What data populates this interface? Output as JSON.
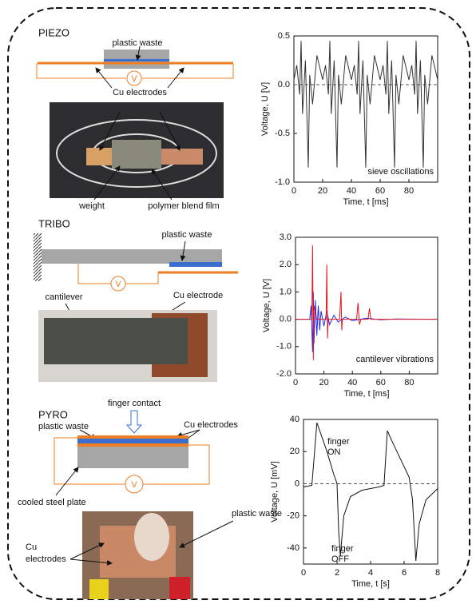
{
  "piezo": {
    "title": "PIEZO",
    "plastic_waste": "plastic waste",
    "cu_electrodes": "Cu electrodes",
    "meter": "V",
    "weight": "weight",
    "film": "polymer blend film"
  },
  "tribo": {
    "title": "TRIBO",
    "plastic_waste": "plastic waste",
    "cantilever": "cantilever",
    "cu_electrode": "Cu electrode",
    "meter": "V"
  },
  "pyro": {
    "title": "PYRO",
    "finger_contact": "finger contact",
    "plastic_waste": "plastic waste",
    "cu_electrodes": "Cu electrodes",
    "meter": "V",
    "steel_plate": "cooled steel plate",
    "photo_plastic_waste": "plastic waste",
    "photo_cu": "Cu",
    "photo_electrodes": "electrodes"
  },
  "chart_data": [
    {
      "type": "line",
      "xlabel": "Time, t [ms]",
      "ylabel": "Voltage, U [V]",
      "annotations": [
        "sieve oscillations"
      ],
      "xlim": [
        0,
        100
      ],
      "xticks": [
        0,
        20,
        40,
        60,
        80
      ],
      "ylim": [
        -1,
        0.5
      ],
      "yticks": [
        {
          "value": -1,
          "label": "-1.0"
        },
        {
          "value": -0.5,
          "label": "-0.5"
        },
        {
          "value": 0,
          "label": "0.0"
        },
        {
          "value": 0.5,
          "label": "0.5"
        }
      ],
      "reference_line": 0,
      "series": [
        {
          "color": "#333333",
          "x": [
            0,
            2,
            4,
            5,
            6,
            8,
            10,
            11,
            13,
            16,
            20,
            22,
            24,
            25,
            26,
            28,
            30,
            31,
            33,
            36,
            40,
            42,
            44,
            45,
            46,
            48,
            50,
            51,
            53,
            56,
            60,
            62,
            64,
            65,
            66,
            68,
            70,
            71,
            73,
            76,
            80,
            82,
            84,
            85,
            86,
            88,
            90,
            91,
            93,
            96,
            100
          ],
          "values": [
            0.05,
            0.2,
            -0.1,
            0.45,
            -0.3,
            0.25,
            -0.85,
            0.1,
            -0.2,
            0.3,
            0.05,
            0.2,
            -0.1,
            0.45,
            -0.3,
            0.25,
            -0.85,
            0.1,
            -0.2,
            0.3,
            0.05,
            0.2,
            -0.1,
            0.45,
            -0.3,
            0.25,
            -0.85,
            0.1,
            -0.2,
            0.3,
            0.05,
            0.2,
            -0.1,
            0.45,
            -0.3,
            0.25,
            -0.85,
            0.1,
            -0.2,
            0.3,
            0.05,
            0.2,
            -0.1,
            0.45,
            -0.3,
            0.25,
            -0.85,
            0.1,
            -0.2,
            0.3,
            0.05
          ]
        }
      ]
    },
    {
      "type": "line",
      "xlabel": "Time, t [ms]",
      "ylabel": "Voltage, U [V]",
      "annotations": [
        "cantilever vibrations"
      ],
      "xlim": [
        0,
        100
      ],
      "xticks": [
        0,
        20,
        40,
        60,
        80
      ],
      "ylim": [
        -2,
        3
      ],
      "yticks": [
        {
          "value": -2,
          "label": "-2.0"
        },
        {
          "value": -1,
          "label": "-1.0"
        },
        {
          "value": 0,
          "label": "0.0"
        },
        {
          "value": 1,
          "label": "1.0"
        },
        {
          "value": 2,
          "label": "2.0"
        },
        {
          "value": 3,
          "label": "3.0"
        }
      ],
      "series": [
        {
          "color": "#1a2cf0",
          "x": [
            0,
            10,
            11,
            12,
            12.5,
            13,
            14,
            15,
            16,
            17,
            18,
            20,
            22,
            24,
            27,
            30,
            35,
            40,
            50,
            60,
            70,
            100
          ],
          "values": [
            0,
            0,
            0.5,
            -1.2,
            1.0,
            -0.9,
            0.7,
            -0.6,
            0.5,
            -0.4,
            0.3,
            -0.25,
            0.3,
            -0.2,
            0.15,
            -0.1,
            0.08,
            -0.05,
            0.04,
            -0.02,
            0.01,
            0
          ]
        },
        {
          "color": "#e8141b",
          "x": [
            0,
            11.5,
            12,
            12.5,
            13,
            15,
            21.5,
            22,
            22.5,
            23,
            31,
            32,
            32.5,
            33,
            43,
            44,
            45,
            46,
            51,
            52,
            53,
            100
          ],
          "values": [
            0,
            0,
            2.7,
            -1.5,
            0.5,
            0,
            0,
            2.0,
            -0.7,
            0,
            0,
            1.0,
            -0.4,
            0,
            0,
            0.6,
            -0.2,
            0,
            0,
            0.4,
            0,
            0
          ]
        }
      ]
    },
    {
      "type": "line",
      "xlabel": "Time, t [s]",
      "ylabel": "Voltage, U [mV]",
      "annotations": [
        "finger",
        "ON",
        "finger",
        "OFF"
      ],
      "xlim": [
        0,
        8
      ],
      "xticks": [
        0,
        2,
        4,
        6,
        8
      ],
      "ylim": [
        -50,
        40
      ],
      "yticks": [
        -40,
        -20,
        0,
        20,
        40
      ],
      "reference_line": 0,
      "series": [
        {
          "color": "#111111",
          "x": [
            0,
            0.5,
            0.8,
            1.0,
            1.4,
            1.8,
            2.0,
            2.1,
            2.2,
            2.4,
            2.8,
            3.5,
            4.5,
            4.8,
            5.0,
            5.3,
            5.8,
            6.3,
            6.5,
            6.7,
            6.9,
            7.3,
            8.0
          ],
          "values": [
            -2,
            -1,
            38,
            32,
            20,
            6,
            0,
            -30,
            -45,
            -20,
            -8,
            -4,
            -2,
            -1,
            33,
            26,
            15,
            4,
            -10,
            -48,
            -25,
            -10,
            -3
          ]
        }
      ]
    }
  ]
}
